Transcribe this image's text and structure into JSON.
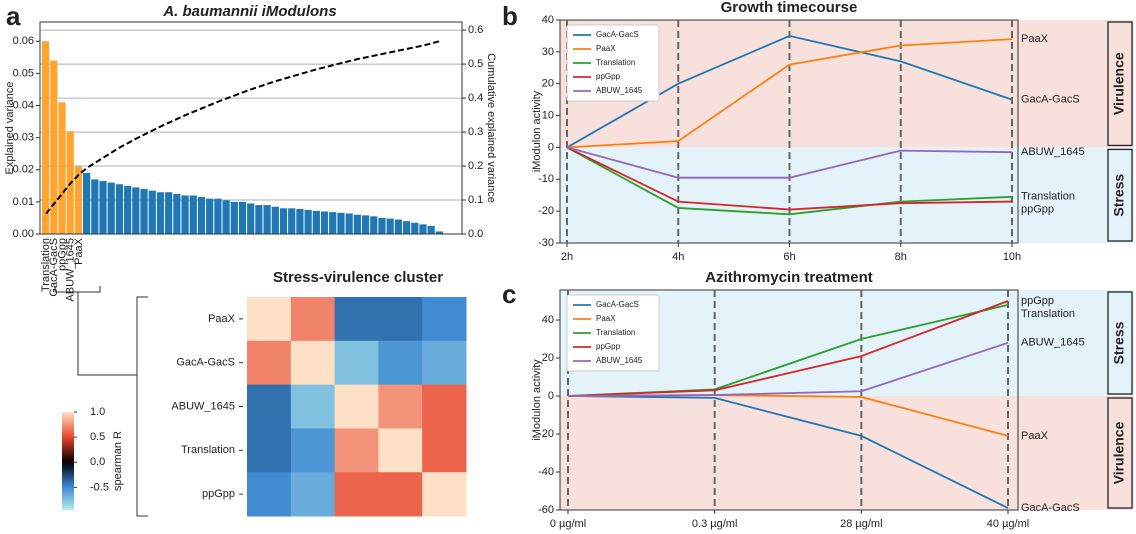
{
  "panel_labels": [
    "a",
    "b",
    "c"
  ],
  "chart_data": [
    {
      "type": "bar",
      "title": "A. baumannii iModulons",
      "ylabel": "Explained variance",
      "y2label": "Cumulative explained variance",
      "categories": [
        "Translation",
        "GacA-GacS",
        "ppGpp",
        "ABUW_1645",
        "PaaX",
        null,
        null,
        null,
        null,
        null,
        null,
        null,
        null,
        null,
        null,
        null,
        null,
        null,
        null,
        null,
        null,
        null,
        null,
        null,
        null,
        null,
        null,
        null,
        null,
        null,
        null,
        null,
        null,
        null,
        null,
        null,
        null,
        null,
        null,
        null,
        null,
        null,
        null,
        null,
        null,
        null,
        null,
        null,
        null
      ],
      "series": [
        {
          "values": [
            0.06,
            0.054,
            0.041,
            0.032,
            0.021,
            0.019,
            0.017,
            0.0165,
            0.016,
            0.0155,
            0.015,
            0.0145,
            0.014,
            0.0135,
            0.013,
            0.013,
            0.0125,
            0.012,
            0.012,
            0.0115,
            0.011,
            0.011,
            0.0105,
            0.01,
            0.01,
            0.0095,
            0.009,
            0.009,
            0.0085,
            0.008,
            0.008,
            0.0078,
            0.0075,
            0.0072,
            0.007,
            0.0068,
            0.0066,
            0.0064,
            0.006,
            0.0058,
            0.0055,
            0.005,
            0.0048,
            0.0045,
            0.004,
            0.0035,
            0.003,
            0.0025,
            0.0008
          ],
          "colors": [
            "#ffa42e",
            "#ffa42e",
            "#ffa42e",
            "#ffa42e",
            "#ffa42e",
            "#1f77b4",
            "#1f77b4",
            "#1f77b4",
            "#1f77b4",
            "#1f77b4",
            "#1f77b4",
            "#1f77b4",
            "#1f77b4",
            "#1f77b4",
            "#1f77b4",
            "#1f77b4",
            "#1f77b4",
            "#1f77b4",
            "#1f77b4",
            "#1f77b4",
            "#1f77b4",
            "#1f77b4",
            "#1f77b4",
            "#1f77b4",
            "#1f77b4",
            "#1f77b4",
            "#1f77b4",
            "#1f77b4",
            "#1f77b4",
            "#1f77b4",
            "#1f77b4",
            "#1f77b4",
            "#1f77b4",
            "#1f77b4",
            "#1f77b4",
            "#1f77b4",
            "#1f77b4",
            "#1f77b4",
            "#1f77b4",
            "#1f77b4",
            "#1f77b4",
            "#1f77b4",
            "#1f77b4",
            "#1f77b4",
            "#1f77b4",
            "#1f77b4",
            "#1f77b4",
            "#1f77b4",
            "#1f77b4"
          ]
        },
        {
          "axis": "y2",
          "color": "#000000",
          "dashed": true,
          "values": [
            0.06,
            0.09,
            0.12,
            0.15,
            0.175,
            0.195,
            0.21,
            0.225,
            0.24,
            0.255,
            0.268,
            0.281,
            0.293,
            0.305,
            0.317,
            0.328,
            0.339,
            0.35,
            0.36,
            0.37,
            0.38,
            0.39,
            0.399,
            0.408,
            0.417,
            0.426,
            0.434,
            0.442,
            0.45,
            0.457,
            0.464,
            0.471,
            0.478,
            0.485,
            0.491,
            0.497,
            0.503,
            0.509,
            0.515,
            0.52,
            0.525,
            0.53,
            0.535,
            0.54,
            0.545,
            0.55,
            0.555,
            0.561,
            0.568
          ]
        }
      ],
      "ylim": [
        0,
        0.066
      ],
      "yticks": [
        {
          "value": 0,
          "label": "0.00"
        },
        0.01,
        0.02,
        0.03,
        0.04,
        0.05,
        0.06
      ],
      "y2lim": [
        0,
        0.624
      ],
      "y2ticks": [
        {
          "value": 0,
          "label": "0.0"
        },
        0.1,
        0.2,
        0.3,
        0.4,
        0.5,
        0.6
      ],
      "grid": "y2"
    },
    {
      "type": "line",
      "title": "Growth timecourse",
      "ylabel": "iModulon activity",
      "categories": [
        "2h",
        "4h",
        "6h",
        "8h",
        "10h"
      ],
      "series": [
        {
          "name": "GacA-GacS",
          "color": "#1f77b4",
          "values": [
            0,
            20,
            35,
            27,
            15
          ]
        },
        {
          "name": "PaaX",
          "color": "#ff7f0e",
          "values": [
            0,
            2,
            26,
            32,
            34
          ]
        },
        {
          "name": "Translation",
          "color": "#2ca02c",
          "values": [
            0,
            -19,
            -21,
            -17,
            -15.5
          ]
        },
        {
          "name": "ppGpp",
          "color": "#d62728",
          "values": [
            0,
            -17,
            -19.5,
            -17.5,
            -17
          ]
        },
        {
          "name": "ABUW_1645",
          "color": "#9467bd",
          "values": [
            0,
            -9.5,
            -9.5,
            -1,
            -1.5
          ]
        }
      ],
      "ylim": [
        -30,
        40
      ],
      "yticks": [
        -30,
        -20,
        -10,
        0,
        10,
        20,
        30,
        40
      ],
      "legend": "upper left",
      "regions": [
        {
          "label": "Virulence",
          "side": "above",
          "color": "#f8e1dc"
        },
        {
          "label": "Stress",
          "side": "below",
          "color": "#e4f2fa"
        }
      ]
    },
    {
      "type": "line",
      "title": "Azithromycin treatment",
      "ylabel": "iModulon activity",
      "categories": [
        "0 µg/ml",
        "0.3 µg/ml",
        "28 µg/ml",
        "40 µg/ml"
      ],
      "series": [
        {
          "name": "GacA-GacS",
          "color": "#1f77b4",
          "values": [
            0,
            -1,
            -21,
            -59
          ]
        },
        {
          "name": "PaaX",
          "color": "#ff7f0e",
          "values": [
            0,
            0.5,
            -0.5,
            -21
          ]
        },
        {
          "name": "Translation",
          "color": "#2ca02c",
          "values": [
            0,
            3.5,
            30,
            48
          ]
        },
        {
          "name": "ppGpp",
          "color": "#d62728",
          "values": [
            0,
            3,
            21,
            50
          ]
        },
        {
          "name": "ABUW_1645",
          "color": "#9467bd",
          "values": [
            0,
            0.5,
            2.5,
            28
          ]
        }
      ],
      "ylim": [
        -60,
        55.8
      ],
      "yticks": [
        -60,
        -40,
        -20,
        0,
        20,
        40
      ],
      "legend": "upper left",
      "regions": [
        {
          "label": "Stress",
          "side": "above",
          "color": "#e4f2fa"
        },
        {
          "label": "Virulence",
          "side": "below",
          "color": "#f8e1dc"
        }
      ]
    },
    {
      "type": "heatmap",
      "title": "Stress-virulence cluster",
      "rows": [
        "PaaX",
        "GacA-GacS",
        "ABUW_1645",
        "Translation",
        "ppGpp"
      ],
      "matrix": [
        [
          1,
          0.7,
          -0.4,
          -0.4,
          -0.5
        ],
        [
          0.7,
          1,
          -0.75,
          -0.55,
          -0.65
        ],
        [
          -0.4,
          -0.75,
          1,
          0.75,
          0.6
        ],
        [
          -0.4,
          -0.55,
          0.75,
          1,
          0.6
        ],
        [
          -0.5,
          -0.65,
          0.6,
          0.6,
          1
        ]
      ],
      "colorbar_label": "spearman R",
      "clim": [
        -0.95,
        1.0
      ],
      "cticks": [
        {
          "value": -0.5,
          "label": "-0.5"
        },
        {
          "value": 0,
          "label": "0.0"
        },
        0.5,
        {
          "value": 1,
          "label": "1.0"
        }
      ],
      "colors": [
        "#b5ecec",
        "#3a86d0",
        "#000000",
        "#e8452c",
        "#fde0c6"
      ]
    }
  ]
}
